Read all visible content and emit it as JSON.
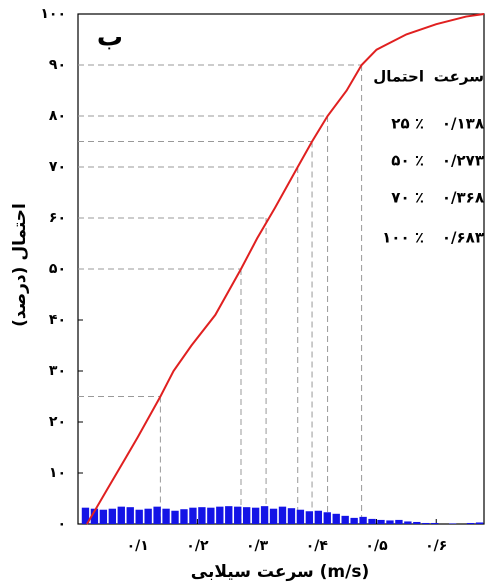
{
  "chart_data": {
    "type": "line",
    "panel_label": "ب",
    "x_label": "سرعت سیلابی (m/s)",
    "y_label": "احتمال (درصد)",
    "xlim": [
      0,
      0.68
    ],
    "ylim": [
      0,
      100
    ],
    "xticks": [
      {
        "value": 0.1,
        "label": "۰/۱"
      },
      {
        "value": 0.2,
        "label": "۰/۲"
      },
      {
        "value": 0.3,
        "label": "۰/۳"
      },
      {
        "value": 0.4,
        "label": "۰/۴"
      },
      {
        "value": 0.5,
        "label": "۰/۵"
      },
      {
        "value": 0.6,
        "label": "۰/۶"
      }
    ],
    "yticks": [
      {
        "value": 0,
        "label": "۰"
      },
      {
        "value": 10,
        "label": "۱۰"
      },
      {
        "value": 20,
        "label": "۲۰"
      },
      {
        "value": 30,
        "label": "۳۰"
      },
      {
        "value": 40,
        "label": "۴۰"
      },
      {
        "value": 50,
        "label": "۵۰"
      },
      {
        "value": 60,
        "label": "۶۰"
      },
      {
        "value": 70,
        "label": "۷۰"
      },
      {
        "value": 80,
        "label": "۸۰"
      },
      {
        "value": 90,
        "label": "۹۰"
      },
      {
        "value": 100,
        "label": "۱۰۰"
      }
    ],
    "series": [
      {
        "color": "#e02020",
        "x": [
          0.015,
          0.03,
          0.05,
          0.08,
          0.1,
          0.138,
          0.16,
          0.19,
          0.23,
          0.273,
          0.3,
          0.33,
          0.368,
          0.392,
          0.418,
          0.45,
          0.475,
          0.5,
          0.55,
          0.6,
          0.65,
          0.68
        ],
        "values": [
          0,
          3,
          7,
          13,
          17,
          25,
          30,
          35,
          41,
          50,
          56,
          62,
          70,
          75,
          80,
          85,
          90,
          93,
          96,
          98,
          99.5,
          100
        ]
      }
    ],
    "histogram": {
      "color": "#1414e6",
      "bins": [
        0.005,
        0.02,
        0.035,
        0.05,
        0.065,
        0.08,
        0.095,
        0.11,
        0.125,
        0.14,
        0.155,
        0.17,
        0.185,
        0.2,
        0.215,
        0.23,
        0.245,
        0.26,
        0.275,
        0.29,
        0.305,
        0.32,
        0.335,
        0.35,
        0.365,
        0.38,
        0.395,
        0.41,
        0.425,
        0.44,
        0.455,
        0.47,
        0.485,
        0.5,
        0.515,
        0.53,
        0.545,
        0.56,
        0.575,
        0.59,
        0.605,
        0.62,
        0.635,
        0.65,
        0.665,
        0.68
      ],
      "counts": [
        3.2,
        3.0,
        2.8,
        3.0,
        3.4,
        3.3,
        2.8,
        3.0,
        3.4,
        3.0,
        2.6,
        2.9,
        3.2,
        3.3,
        3.2,
        3.4,
        3.5,
        3.4,
        3.3,
        3.2,
        3.5,
        3.0,
        3.4,
        3.1,
        2.8,
        2.5,
        2.6,
        2.3,
        2.0,
        1.6,
        1.2,
        1.4,
        1.0,
        0.8,
        0.7,
        0.8,
        0.5,
        0.4,
        0.2,
        0.2,
        0.0,
        0.1,
        0.0,
        0.2,
        0.3
      ]
    },
    "reference_lines": [
      {
        "x": 0.138,
        "y": 25
      },
      {
        "x": 0.273,
        "y": 50
      },
      {
        "x": 0.315,
        "y": 60
      },
      {
        "x": 0.368,
        "y": 70
      },
      {
        "x": 0.392,
        "y": 75
      },
      {
        "x": 0.418,
        "y": 80
      },
      {
        "x": 0.475,
        "y": 90
      }
    ],
    "table": {
      "header": [
        "سرعت",
        "احتمال"
      ],
      "rows": [
        [
          "۰/۱۳۸",
          "۲۵ ٪"
        ],
        [
          "۰/۲۷۳",
          "۵۰ ٪"
        ],
        [
          "۰/۳۶۸",
          "۷۰ ٪"
        ],
        [
          "۰/۶۸۳",
          "۱۰۰ ٪"
        ]
      ]
    }
  }
}
